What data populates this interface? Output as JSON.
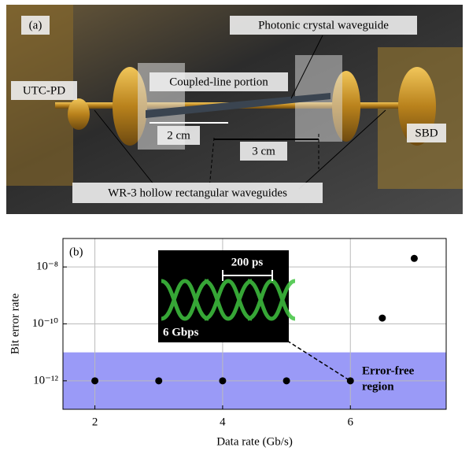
{
  "photo": {
    "panel_label": "(a)",
    "labels": [
      "Photonic crystal waveguide",
      "UTC-PD",
      "Coupled-line portion",
      "2 cm",
      "3 cm",
      "SBD",
      "WR-3 hollow rectangular waveguides"
    ]
  },
  "chart_data": {
    "type": "scatter",
    "panel_label": "(b)",
    "x_label": "Data rate (Gb/s)",
    "y_label": "Bit error rate",
    "x": [
      2,
      3,
      4,
      5,
      6,
      6.5,
      7
    ],
    "values": [
      1e-12,
      1e-12,
      1e-12,
      1e-12,
      1e-12,
      1.6e-10,
      2e-08
    ],
    "color": "#000000",
    "xlim": [
      1.5,
      7.5
    ],
    "xticks": [
      2,
      4,
      6
    ],
    "ylim": [
      1e-13,
      1e-07
    ],
    "log_y": true,
    "yticks": [
      {
        "value": 1e-12,
        "label": "10⁻¹²"
      },
      {
        "value": 1e-10,
        "label": "10⁻¹⁰"
      },
      {
        "value": 1e-08,
        "label": "10⁻⁸"
      }
    ],
    "grid": true,
    "region": {
      "below": 1e-11,
      "color": "#9a9af7",
      "label_lines": [
        "Error-free",
        "region"
      ]
    },
    "inset": {
      "scale_label": "200 ps",
      "eye_label": "6 Gbps"
    }
  }
}
